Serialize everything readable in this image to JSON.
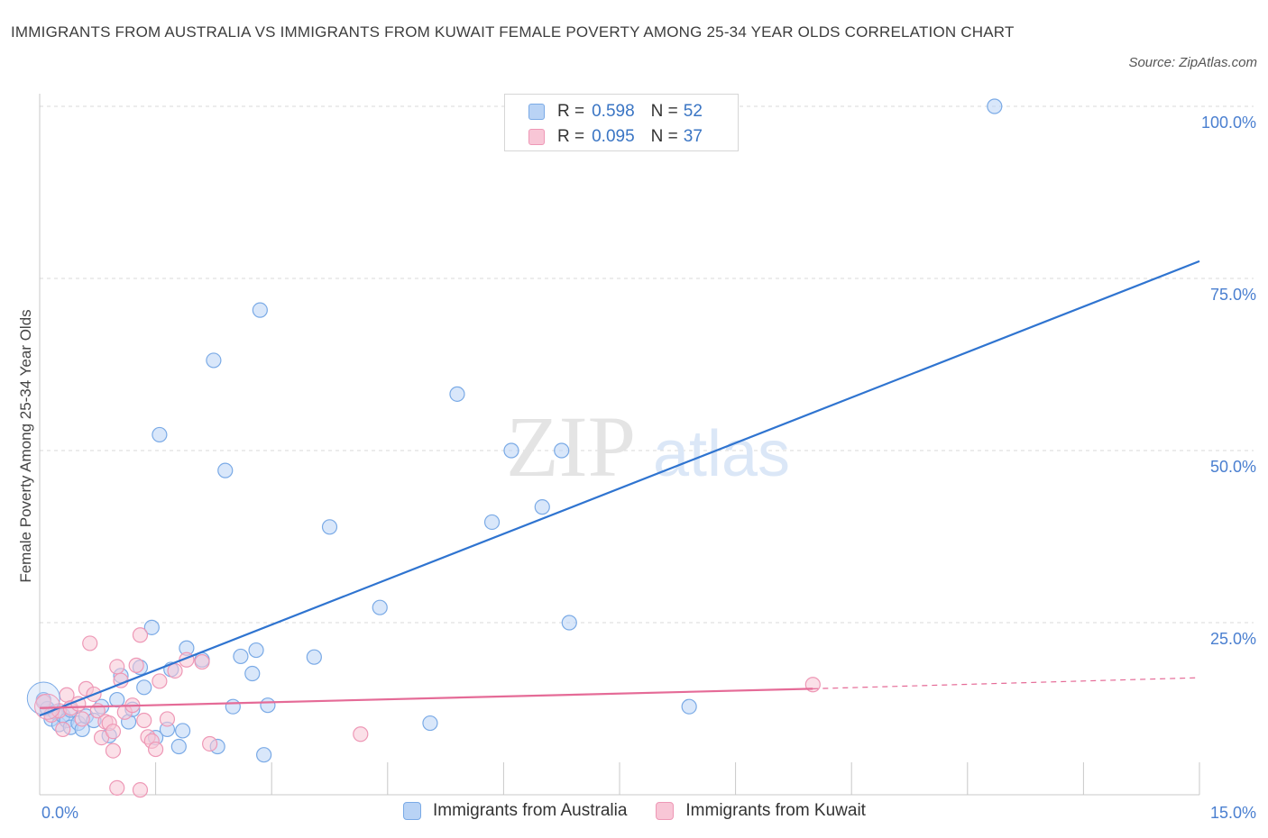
{
  "header": {
    "title": "IMMIGRANTS FROM AUSTRALIA VS IMMIGRANTS FROM KUWAIT FEMALE POVERTY AMONG 25-34 YEAR OLDS CORRELATION CHART",
    "source": "Source: ZipAtlas.com"
  },
  "watermark": {
    "zip": "ZIP",
    "atlas": "atlas"
  },
  "colors": {
    "australia_fill": "#b9d3f5",
    "australia_stroke": "#7aaae6",
    "australia_line": "#2f74d0",
    "kuwait_fill": "#f8c6d6",
    "kuwait_stroke": "#ee98b6",
    "kuwait_line": "#e56b97",
    "tick_text": "#4a7fd0",
    "grid": "#d9d9d9"
  },
  "legend": {
    "rows": [
      {
        "r_label": "R = ",
        "r_value": "0.598",
        "n_label": "N = ",
        "n_value": "52"
      },
      {
        "r_label": "R = ",
        "r_value": "0.095",
        "n_label": "N = ",
        "n_value": "37"
      }
    ]
  },
  "bottom_legend": [
    "Immigrants from Australia",
    "Immigrants from Kuwait"
  ],
  "chart_data": {
    "type": "scatter",
    "title": "IMMIGRANTS FROM AUSTRALIA VS IMMIGRANTS FROM KUWAIT FEMALE POVERTY AMONG 25-34 YEAR OLDS CORRELATION CHART",
    "xlabel": "",
    "ylabel": "Female Poverty Among 25-34 Year Olds",
    "xlim": [
      0,
      15
    ],
    "ylim": [
      0,
      100
    ],
    "x_tick_labels": [
      "0.0%",
      "15.0%"
    ],
    "y_ticks": [
      25,
      50,
      75,
      100
    ],
    "y_tick_labels": [
      "25.0%",
      "50.0%",
      "75.0%",
      "100.0%"
    ],
    "grid": true,
    "legend_position": "top-center",
    "series": [
      {
        "name": "Immigrants from Australia",
        "R": 0.598,
        "N": 52,
        "trend": {
          "x": [
            0,
            15
          ],
          "y": [
            11.5,
            77.5
          ]
        },
        "points": [
          [
            0.05,
            13.8
          ],
          [
            0.1,
            12.5
          ],
          [
            0.15,
            11.0
          ],
          [
            0.2,
            12.0
          ],
          [
            0.25,
            10.2
          ],
          [
            0.3,
            11.5
          ],
          [
            0.35,
            10.8
          ],
          [
            0.4,
            12.3
          ],
          [
            0.4,
            9.8
          ],
          [
            0.5,
            10.4
          ],
          [
            0.55,
            9.5
          ],
          [
            0.6,
            11.4
          ],
          [
            0.7,
            10.8
          ],
          [
            0.8,
            12.8
          ],
          [
            0.9,
            8.6
          ],
          [
            1.0,
            13.8
          ],
          [
            1.05,
            17.3
          ],
          [
            1.15,
            10.6
          ],
          [
            1.2,
            12.4
          ],
          [
            1.3,
            18.5
          ],
          [
            1.35,
            15.6
          ],
          [
            1.45,
            24.3
          ],
          [
            1.5,
            8.3
          ],
          [
            1.55,
            52.3
          ],
          [
            1.65,
            9.5
          ],
          [
            1.7,
            18.2
          ],
          [
            1.8,
            7.0
          ],
          [
            1.85,
            9.3
          ],
          [
            1.9,
            21.3
          ],
          [
            2.1,
            19.6
          ],
          [
            2.25,
            63.1
          ],
          [
            2.3,
            7.0
          ],
          [
            2.4,
            47.1
          ],
          [
            2.5,
            12.8
          ],
          [
            2.6,
            20.1
          ],
          [
            2.75,
            17.6
          ],
          [
            2.8,
            21.0
          ],
          [
            2.85,
            70.4
          ],
          [
            2.9,
            5.8
          ],
          [
            2.95,
            13.0
          ],
          [
            3.55,
            20.0
          ],
          [
            3.75,
            38.9
          ],
          [
            4.4,
            27.2
          ],
          [
            5.05,
            10.4
          ],
          [
            5.4,
            58.2
          ],
          [
            5.85,
            39.6
          ],
          [
            6.1,
            50.0
          ],
          [
            6.5,
            41.8
          ],
          [
            6.75,
            50.0
          ],
          [
            6.85,
            25.0
          ],
          [
            8.4,
            12.8
          ],
          [
            12.35,
            100.0
          ]
        ]
      },
      {
        "name": "Immigrants from Kuwait",
        "R": 0.095,
        "N": 37,
        "trend": {
          "x": [
            0,
            10
          ],
          "y": [
            12.6,
            15.4
          ]
        },
        "trend_extension": {
          "x": [
            10,
            15
          ],
          "y": [
            15.4,
            17.0
          ]
        },
        "points": [
          [
            0.05,
            13.5
          ],
          [
            0.15,
            11.6
          ],
          [
            0.25,
            12.2
          ],
          [
            0.3,
            9.5
          ],
          [
            0.35,
            14.5
          ],
          [
            0.4,
            12.6
          ],
          [
            0.5,
            13.2
          ],
          [
            0.55,
            11.0
          ],
          [
            0.6,
            15.4
          ],
          [
            0.65,
            22.0
          ],
          [
            0.7,
            14.6
          ],
          [
            0.75,
            12.2
          ],
          [
            0.8,
            8.3
          ],
          [
            0.85,
            10.6
          ],
          [
            0.9,
            10.4
          ],
          [
            0.95,
            9.2
          ],
          [
            1.0,
            18.6
          ],
          [
            1.05,
            16.6
          ],
          [
            1.1,
            12.0
          ],
          [
            1.2,
            13.0
          ],
          [
            1.25,
            18.8
          ],
          [
            1.3,
            23.2
          ],
          [
            1.35,
            10.8
          ],
          [
            1.4,
            8.4
          ],
          [
            1.45,
            7.8
          ],
          [
            1.5,
            6.6
          ],
          [
            1.55,
            16.5
          ],
          [
            1.65,
            11.0
          ],
          [
            1.75,
            18.0
          ],
          [
            1.9,
            19.6
          ],
          [
            2.1,
            19.3
          ],
          [
            2.2,
            7.4
          ],
          [
            1.0,
            1.0
          ],
          [
            1.3,
            0.7
          ],
          [
            0.95,
            6.4
          ],
          [
            4.15,
            8.8
          ],
          [
            10.0,
            16.0
          ]
        ]
      }
    ]
  }
}
